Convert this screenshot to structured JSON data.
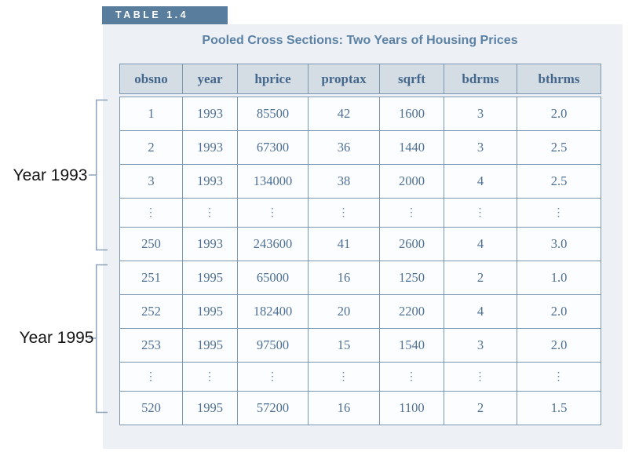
{
  "figure": {
    "tab_label": "TABLE 1.4",
    "title": "Pooled Cross Sections: Two Years of Housing Prices"
  },
  "table": {
    "columns": [
      "obsno",
      "year",
      "hprice",
      "proptax",
      "sqrft",
      "bdrms",
      "bthrms"
    ],
    "rows": [
      [
        "1",
        "1993",
        "85500",
        "42",
        "1600",
        "3",
        "2.0"
      ],
      [
        "2",
        "1993",
        "67300",
        "36",
        "1440",
        "3",
        "2.5"
      ],
      [
        "3",
        "1993",
        "134000",
        "38",
        "2000",
        "4",
        "2.5"
      ],
      [
        "⋮",
        "⋮",
        "⋮",
        "⋮",
        "⋮",
        "⋮",
        "⋮"
      ],
      [
        "250",
        "1993",
        "243600",
        "41",
        "2600",
        "4",
        "3.0"
      ],
      [
        "251",
        "1995",
        "65000",
        "16",
        "1250",
        "2",
        "1.0"
      ],
      [
        "252",
        "1995",
        "182400",
        "20",
        "2200",
        "4",
        "2.0"
      ],
      [
        "253",
        "1995",
        "97500",
        "15",
        "1540",
        "3",
        "2.0"
      ],
      [
        "⋮",
        "⋮",
        "⋮",
        "⋮",
        "⋮",
        "⋮",
        "⋮"
      ],
      [
        "520",
        "1995",
        "57200",
        "16",
        "1100",
        "2",
        "1.5"
      ]
    ]
  },
  "annotations": {
    "group_1993": {
      "label": "Year 1993"
    },
    "group_1995": {
      "label": "Year 1995"
    }
  },
  "colors": {
    "tab_bg": "#587d9d",
    "tab_text": "#ffffff",
    "panel_bg": "#edf1f5",
    "title_color": "#5b81a5",
    "border_color": "#7b96b0",
    "header_bg": "#d5dde4",
    "header_text": "#44678c",
    "cell_bg": "#fcfdfe",
    "cell_text": "#4e7095",
    "bracket_color": "#8ba2bc",
    "label_color": "#141414"
  }
}
